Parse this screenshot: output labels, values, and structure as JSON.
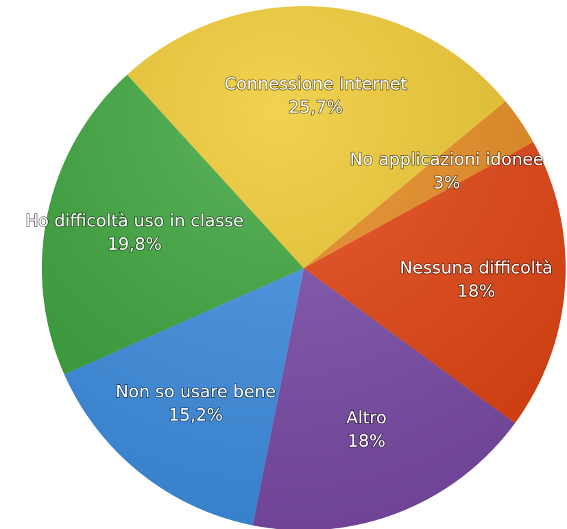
{
  "chart_data": {
    "type": "pie",
    "categories": [
      "Connessione Internet",
      "No applicazioni idonee",
      "Nessuna difficoltà",
      "Altro",
      "Non so usare bene",
      "Ho difficoltà uso in classe"
    ],
    "values": [
      25.7,
      3,
      18,
      18,
      15.2,
      19.8
    ],
    "value_labels": [
      "25,7%",
      "3%",
      "18%",
      "18%",
      "15,2%",
      "19,8%"
    ],
    "colors": [
      "#efc82c",
      "#e98a1c",
      "#e5420f",
      "#7b4aa8",
      "#3c8fe4",
      "#3aa53a"
    ]
  }
}
